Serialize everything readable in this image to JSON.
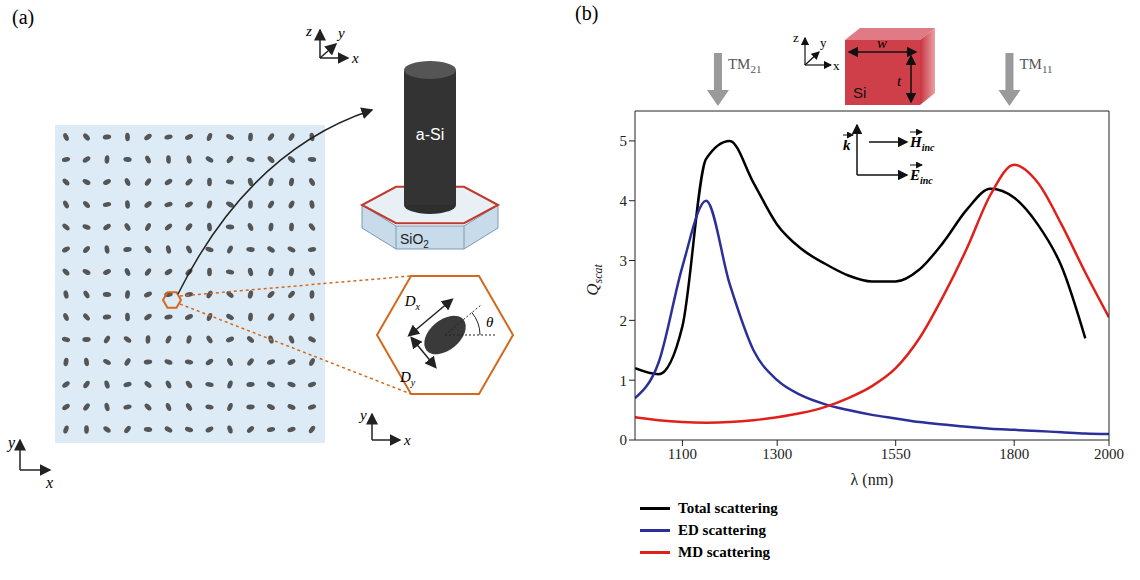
{
  "diagram": {
    "panel": "(a)",
    "pillar_material": "a-Si",
    "substrate": {
      "text": "SiO",
      "subscript": "2"
    },
    "axes_labels": [
      "x",
      "y",
      "z"
    ],
    "dimensions": [
      {
        "text": "D",
        "subscript": "x"
      },
      {
        "text": "D",
        "subscript": "y"
      }
    ],
    "angle": "θ"
  },
  "chart_data": {
    "panel": "(b)",
    "type": "line",
    "x_label": "λ (nm)",
    "y_label": {
      "text": "Q",
      "subscript": "scat"
    },
    "x": [
      1000,
      1050,
      1100,
      1150,
      1200,
      1250,
      1300,
      1350,
      1400,
      1450,
      1500,
      1550,
      1600,
      1650,
      1700,
      1750,
      1800,
      1850,
      1900,
      1950,
      2000
    ],
    "xlim": [
      1000,
      2000
    ],
    "xticks": [
      1100,
      1300,
      1550,
      1800,
      2000
    ],
    "ylim": [
      0,
      5.5
    ],
    "yticks": [
      0,
      1,
      2,
      3,
      4,
      5
    ],
    "grid": false,
    "legend": "bottom",
    "series": [
      {
        "name": "Total scattering",
        "color": "#000000",
        "values": [
          1.2,
          1.1,
          1.9,
          4.7,
          5.0,
          4.3,
          3.6,
          3.2,
          2.95,
          2.75,
          2.65,
          2.65,
          2.85,
          3.3,
          3.85,
          4.2,
          4.05,
          3.6,
          2.9,
          1.7,
          null
        ]
      },
      {
        "name": "ED scattering",
        "color": "#2b2f9a",
        "values": [
          0.7,
          1.3,
          2.9,
          4.0,
          2.6,
          1.5,
          1.0,
          0.75,
          0.6,
          0.5,
          0.42,
          0.36,
          0.3,
          0.26,
          0.22,
          0.19,
          0.17,
          0.15,
          0.13,
          0.11,
          0.1
        ]
      },
      {
        "name": "MD scattering",
        "color": "#e0201b",
        "values": [
          0.38,
          0.33,
          0.3,
          0.29,
          0.3,
          0.33,
          0.38,
          0.45,
          0.55,
          0.7,
          0.9,
          1.2,
          1.7,
          2.4,
          3.2,
          4.1,
          4.6,
          4.3,
          3.6,
          2.8,
          2.05
        ]
      }
    ],
    "annotations": [
      {
        "text": "TM",
        "subscript": "21",
        "x": 1175
      },
      {
        "text": "TM",
        "subscript": "11",
        "x": 1790
      }
    ],
    "inset": {
      "material": "Si",
      "width_label": "w",
      "thickness_label": "t",
      "axes_labels": [
        "z",
        "y",
        "x"
      ],
      "wave_vector": "k",
      "magnetic_field": {
        "text": "H",
        "subscript": "inc"
      },
      "electric_field": {
        "text": "E",
        "subscript": "inc"
      }
    }
  }
}
